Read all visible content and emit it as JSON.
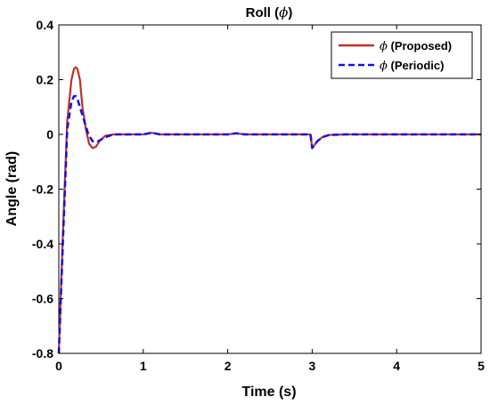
{
  "chart_data": {
    "type": "line",
    "title": "Roll (",
    "title_symbol": "ϕ",
    "title_suffix": ")",
    "xlabel": "Time (s)",
    "ylabel": "Angle (rad)",
    "xlim": [
      0,
      5
    ],
    "ylim": [
      -0.8,
      0.4
    ],
    "xticks": [
      0,
      1,
      2,
      3,
      4,
      5
    ],
    "yticks": [
      -0.8,
      -0.6,
      -0.4,
      -0.2,
      0,
      0.2,
      0.4
    ],
    "xtick_labels": [
      "0",
      "1",
      "2",
      "3",
      "4",
      "5"
    ],
    "ytick_labels": [
      "-0.8",
      "-0.6",
      "-0.4",
      "-0.2",
      "0",
      "0.2",
      "0.4"
    ],
    "grid": false,
    "legend_position": "top-right",
    "series": [
      {
        "name": "(Proposed)",
        "symbol": "ϕ",
        "color": "#c0302b",
        "style": "solid",
        "x": [
          0,
          0.05,
          0.1,
          0.15,
          0.18,
          0.2,
          0.22,
          0.25,
          0.28,
          0.32,
          0.36,
          0.4,
          0.44,
          0.48,
          0.55,
          0.65,
          0.8,
          1.0,
          1.1,
          1.2,
          1.5,
          2.0,
          2.1,
          2.2,
          2.98,
          3.0,
          3.02,
          3.06,
          3.12,
          3.2,
          3.4,
          4.0,
          5.0
        ],
        "y": [
          -0.8,
          -0.35,
          0.05,
          0.2,
          0.24,
          0.245,
          0.24,
          0.2,
          0.1,
          0.02,
          -0.035,
          -0.05,
          -0.045,
          -0.025,
          -0.005,
          0.0,
          0.0,
          0.0,
          0.006,
          0.0,
          0.0,
          0.0,
          0.004,
          0.0,
          0.0,
          -0.05,
          -0.042,
          -0.025,
          -0.01,
          -0.002,
          0.0,
          0.0,
          0.0
        ]
      },
      {
        "name": "(Periodic)",
        "symbol": "ϕ",
        "color": "#1010ee",
        "style": "dashed",
        "x": [
          0,
          0.05,
          0.1,
          0.15,
          0.18,
          0.2,
          0.22,
          0.25,
          0.3,
          0.35,
          0.4,
          0.45,
          0.55,
          0.65,
          0.8,
          1.0,
          1.1,
          1.2,
          1.5,
          2.0,
          2.1,
          2.2,
          2.98,
          3.0,
          3.02,
          3.06,
          3.12,
          3.2,
          3.4,
          4.0,
          5.0
        ],
        "y": [
          -0.8,
          -0.38,
          0.02,
          0.12,
          0.14,
          0.14,
          0.13,
          0.1,
          0.05,
          0.0,
          -0.025,
          -0.028,
          -0.01,
          0.0,
          0.0,
          0.0,
          0.006,
          0.0,
          0.0,
          0.0,
          0.004,
          0.0,
          0.0,
          -0.05,
          -0.042,
          -0.025,
          -0.01,
          -0.002,
          0.0,
          0.0,
          0.0
        ]
      }
    ]
  }
}
